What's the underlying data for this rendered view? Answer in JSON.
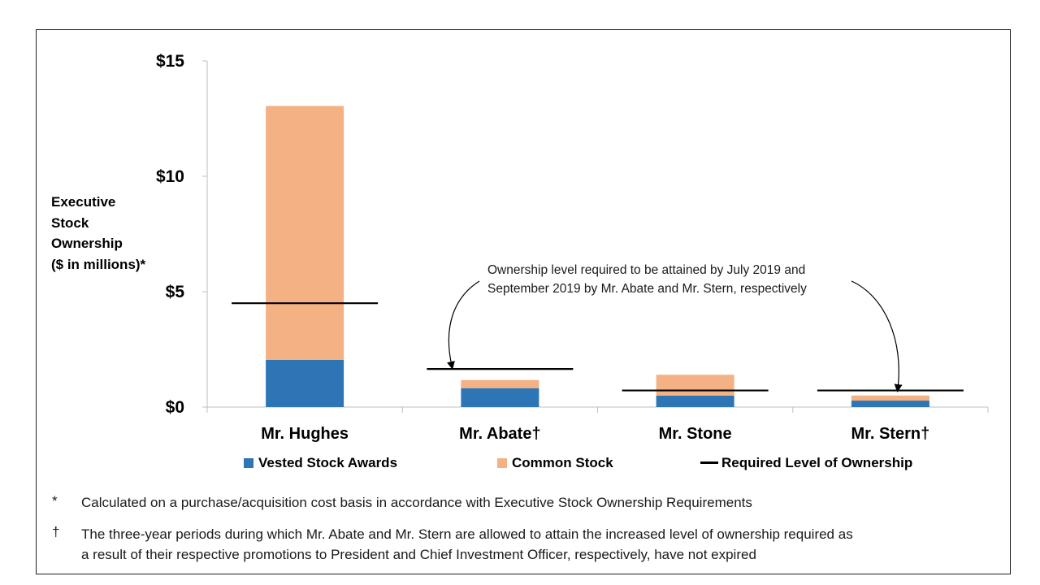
{
  "chart_data": {
    "type": "bar",
    "stacked": true,
    "categories": [
      "Mr. Hughes",
      "Mr. Abate†",
      "Mr. Stone",
      "Mr. Stern†"
    ],
    "series": [
      {
        "name": "Vested Stock Awards",
        "color": "#2e75b6",
        "values": [
          2.05,
          0.82,
          0.5,
          0.28
        ]
      },
      {
        "name": "Common Stock",
        "color": "#f4b183",
        "values": [
          11.0,
          0.35,
          0.9,
          0.22
        ]
      }
    ],
    "required_level": {
      "name": "Required Level of Ownership",
      "color": "#000000",
      "values": [
        4.5,
        1.65,
        0.72,
        0.72
      ]
    },
    "yticks": [
      "$0",
      "$5",
      "$10",
      "$15"
    ],
    "ytick_values": [
      0,
      5,
      10,
      15
    ],
    "ylim": [
      0,
      15
    ],
    "ylabel": [
      "Executive",
      "Stock",
      "Ownership",
      "($ in millions)*"
    ],
    "grid": false,
    "legend_position": "bottom",
    "annotation": [
      "Ownership level required to be attained by July 2019 and",
      "September 2019 by Mr. Abate and Mr. Stern, respectively"
    ]
  },
  "footnotes": [
    {
      "mark": "*",
      "lines": [
        "Calculated on a purchase/acquisition cost basis in accordance with Executive Stock Ownership Requirements"
      ]
    },
    {
      "mark": "†",
      "lines": [
        "The three-year periods during which Mr. Abate and Mr. Stern are allowed to attain the increased level of ownership required as",
        "a result of their respective promotions to President and Chief Investment Officer, respectively, have not expired"
      ]
    }
  ]
}
